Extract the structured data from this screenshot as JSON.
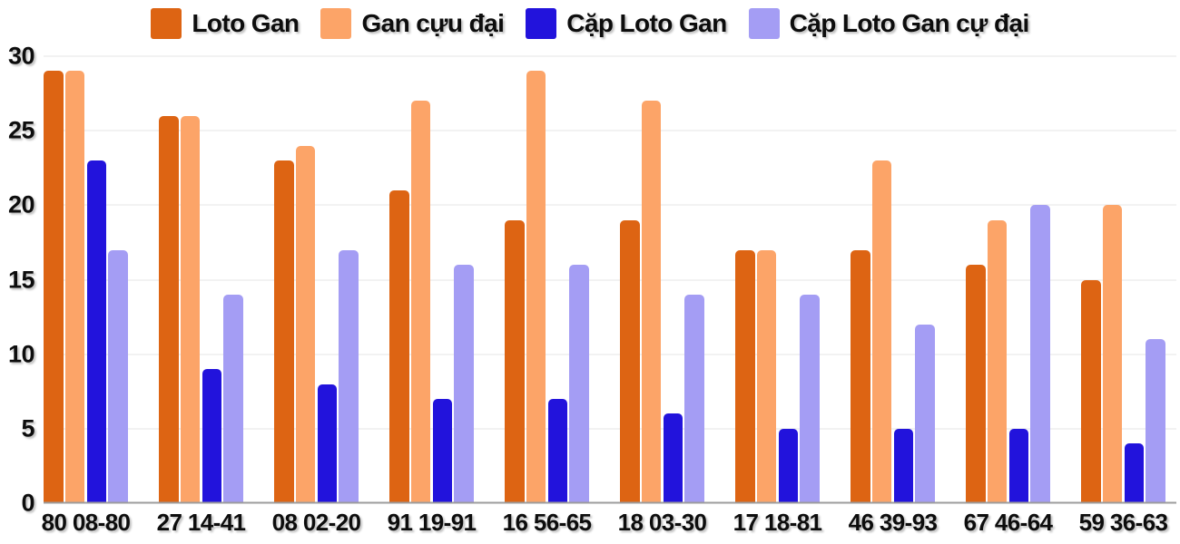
{
  "chart_data": {
    "type": "bar",
    "title": "",
    "xlabel": "",
    "ylabel": "",
    "categories": [
      "80 08-80",
      "27 14-41",
      "08 02-20",
      "91 19-91",
      "16 56-65",
      "18 03-30",
      "17 18-81",
      "46 39-93",
      "67 46-64",
      "59 36-63"
    ],
    "series": [
      {
        "name": "Loto Gan",
        "color": "#DD6413",
        "values": [
          29,
          26,
          23,
          21,
          19,
          19,
          17,
          17,
          16,
          15
        ]
      },
      {
        "name": "Gan cựu đại",
        "color": "#FCA468",
        "values": [
          29,
          26,
          24,
          27,
          29,
          27,
          17,
          23,
          19,
          20
        ]
      },
      {
        "name": "Cặp Loto Gan",
        "color": "#2213DC",
        "values": [
          23,
          9,
          8,
          7,
          7,
          6,
          5,
          5,
          5,
          4
        ]
      },
      {
        "name": "Cặp Loto Gan cự đại",
        "color": "#A49DF4",
        "values": [
          17,
          14,
          17,
          16,
          16,
          14,
          14,
          12,
          20,
          11
        ]
      }
    ],
    "ylim": [
      0,
      30
    ],
    "yticks": [
      0,
      5,
      10,
      15,
      20,
      25,
      30
    ],
    "grid": true,
    "legend_position": "top",
    "colors": {
      "background": "#ffffff",
      "gridline": "#e4e4e4",
      "axis_line": "#9c9c9c",
      "label_text": "#0d0d0d"
    }
  }
}
